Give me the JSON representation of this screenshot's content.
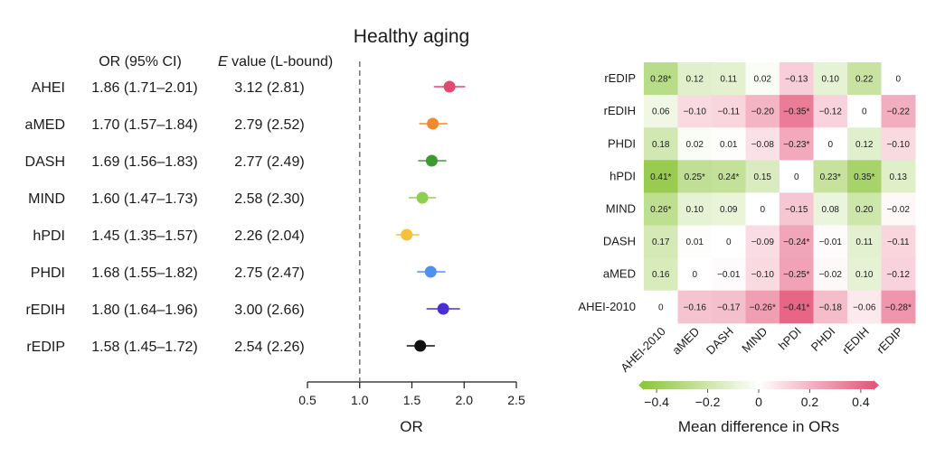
{
  "chart_data": [
    {
      "type": "forest",
      "title": "Healthy aging",
      "xlabel": "OR",
      "xlim": [
        0.5,
        2.5
      ],
      "xticks": [
        "0.5",
        "1.0",
        "1.5",
        "2.0",
        "2.5"
      ],
      "reference_line": 1.0,
      "column_headers": {
        "or_ci": "OR (95% CI)",
        "evalue_italic": "E",
        "evalue_rest": " value (L-bound)"
      },
      "rows": [
        {
          "label": "AHEI",
          "or_text": "1.86 (1.71–2.01)",
          "evalue_text": "3.12 (2.81)",
          "or": 1.86,
          "lo": 1.71,
          "hi": 2.01,
          "color": "#e24a6e"
        },
        {
          "label": "aMED",
          "or_text": "1.70 (1.57–1.84)",
          "evalue_text": "2.79 (2.52)",
          "or": 1.7,
          "lo": 1.57,
          "hi": 1.84,
          "color": "#f08a2c"
        },
        {
          "label": "DASH",
          "or_text": "1.69 (1.56–1.83)",
          "evalue_text": "2.77 (2.49)",
          "or": 1.69,
          "lo": 1.56,
          "hi": 1.83,
          "color": "#3f9a34"
        },
        {
          "label": "MIND",
          "or_text": "1.60 (1.47–1.73)",
          "evalue_text": "2.58 (2.30)",
          "or": 1.6,
          "lo": 1.47,
          "hi": 1.73,
          "color": "#8fcf4f"
        },
        {
          "label": "hPDI",
          "or_text": "1.45 (1.35–1.57)",
          "evalue_text": "2.26 (2.04)",
          "or": 1.45,
          "lo": 1.35,
          "hi": 1.57,
          "color": "#f3c23a"
        },
        {
          "label": "PHDI",
          "or_text": "1.68 (1.55–1.82)",
          "evalue_text": "2.75 (2.47)",
          "or": 1.68,
          "lo": 1.55,
          "hi": 1.82,
          "color": "#4f8ff0"
        },
        {
          "label": "rEDIH",
          "or_text": "1.80 (1.64–1.96)",
          "evalue_text": "3.00 (2.66)",
          "or": 1.8,
          "lo": 1.64,
          "hi": 1.96,
          "color": "#4a2fd6"
        },
        {
          "label": "rEDIP",
          "or_text": "1.58 (1.45–1.72)",
          "evalue_text": "2.54 (2.26)",
          "or": 1.58,
          "lo": 1.45,
          "hi": 1.72,
          "color": "#111111"
        }
      ]
    },
    {
      "type": "heatmap",
      "columns": [
        "AHEI-2010",
        "aMED",
        "DASH",
        "MIND",
        "hPDI",
        "PHDI",
        "rEDIH",
        "rEDIP"
      ],
      "rows": [
        "rEDIP",
        "rEDIH",
        "PHDI",
        "hPDI",
        "MIND",
        "DASH",
        "aMED",
        "AHEI-2010"
      ],
      "values": [
        [
          0.28,
          0.12,
          0.11,
          0.02,
          -0.13,
          0.1,
          0.22,
          0
        ],
        [
          0.06,
          -0.1,
          -0.11,
          -0.2,
          -0.35,
          -0.12,
          0,
          -0.22
        ],
        [
          0.18,
          0.02,
          0.01,
          -0.08,
          -0.23,
          0,
          0.12,
          -0.1
        ],
        [
          0.41,
          0.25,
          0.24,
          0.15,
          0,
          0.23,
          0.35,
          0.13
        ],
        [
          0.26,
          0.1,
          0.09,
          0,
          -0.15,
          0.08,
          0.2,
          -0.02
        ],
        [
          0.17,
          0.01,
          0,
          -0.09,
          -0.24,
          -0.01,
          0.11,
          -0.11
        ],
        [
          0.16,
          0,
          -0.01,
          -0.1,
          -0.25,
          -0.02,
          0.1,
          -0.12
        ],
        [
          0,
          -0.16,
          -0.17,
          -0.26,
          -0.41,
          -0.18,
          -0.06,
          -0.28
        ]
      ],
      "labels": [
        [
          "0.28*",
          "0.12",
          "0.11",
          "0.02",
          "−0.13",
          "0.10",
          "0.22",
          "0"
        ],
        [
          "0.06",
          "−0.10",
          "−0.11",
          "−0.20",
          "−0.35*",
          "−0.12",
          "0",
          "−0.22"
        ],
        [
          "0.18",
          "0.02",
          "0.01",
          "−0.08",
          "−0.23*",
          "0",
          "0.12",
          "−0.10"
        ],
        [
          "0.41*",
          "0.25*",
          "0.24*",
          "0.15",
          "0",
          "0.23*",
          "0.35*",
          "0.13"
        ],
        [
          "0.26*",
          "0.10",
          "0.09",
          "0",
          "−0.15",
          "0.08",
          "0.20",
          "−0.02"
        ],
        [
          "0.17",
          "0.01",
          "0",
          "−0.09",
          "−0.24*",
          "−0.01",
          "0.11",
          "−0.11"
        ],
        [
          "0.16",
          "0",
          "−0.01",
          "−0.10",
          "−0.25*",
          "−0.02",
          "0.10",
          "−0.12"
        ],
        [
          "0",
          "−0.16",
          "−0.17",
          "−0.26*",
          "−0.41*",
          "−0.18",
          "−0.06",
          "−0.28*"
        ]
      ],
      "colorbar": {
        "range": [
          -0.45,
          0.45
        ],
        "ticks": [
          -0.4,
          -0.2,
          0,
          0.2,
          0.4
        ],
        "tick_labels": [
          "−0.4",
          "−0.2",
          "0",
          "0.2",
          "0.4"
        ],
        "label": "Mean difference in ORs",
        "negative_color": "#8fc63f",
        "positive_color": "#e5577a"
      }
    }
  ]
}
